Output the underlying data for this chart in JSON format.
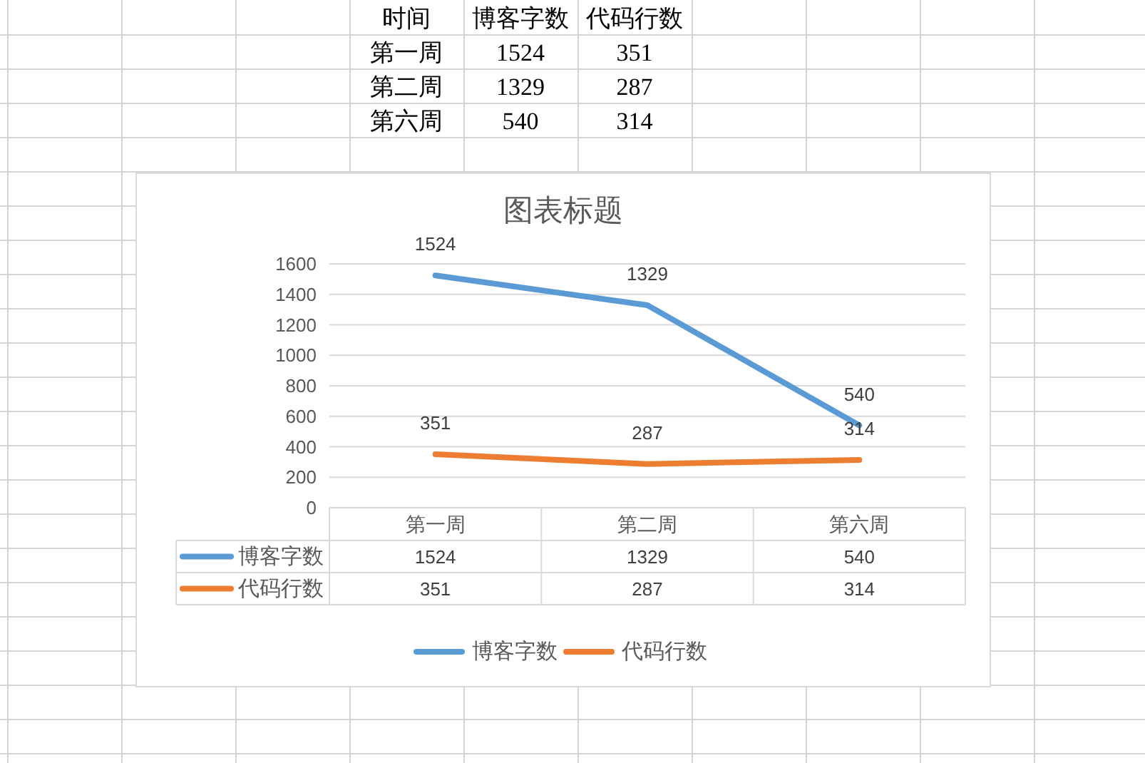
{
  "chart_data": [
    {
      "type": "other",
      "annotations": [
        "时间",
        "博客字数",
        "代码行数",
        "第一周",
        "1524",
        "351",
        "第二周",
        "1329",
        "287",
        "第六周",
        "540",
        "314"
      ]
    },
    {
      "type": "line",
      "title": "图表标题",
      "categories": [
        "第一周",
        "第二周",
        "第六周"
      ],
      "series": [
        {
          "name": "博客字数",
          "color": "#5b9bd5",
          "values": [
            1524,
            1329,
            540
          ],
          "value_labels": [
            "1524",
            "1329",
            "540"
          ]
        },
        {
          "name": "代码行数",
          "color": "#ed7d31",
          "values": [
            351,
            287,
            314
          ],
          "value_labels": [
            "351",
            "287",
            "314"
          ]
        }
      ],
      "ylim": [
        0,
        1600
      ],
      "yticks": [
        0,
        200,
        400,
        600,
        800,
        1000,
        1200,
        1400,
        1600
      ],
      "grid": "y",
      "legend": "bottom",
      "data_labels": true
    }
  ]
}
